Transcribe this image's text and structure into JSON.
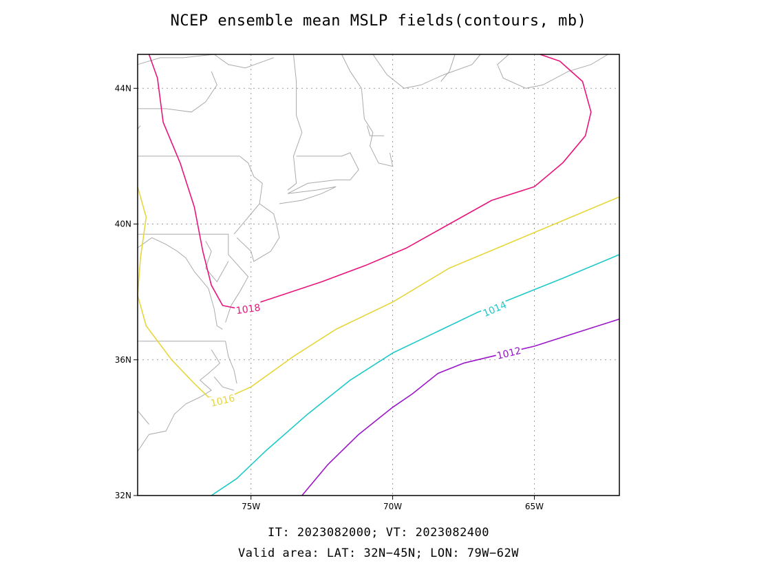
{
  "title": "NCEP ensemble mean MSLP fields(contours, mb)",
  "footer": {
    "times": "IT: 2023082000; VT: 2023082400",
    "area": "Valid area: LAT: 32N−45N; LON: 79W−62W"
  },
  "map": {
    "lon_range": [
      -79,
      -62
    ],
    "lat_range": [
      32,
      45
    ],
    "grid": "dotted",
    "xticks": [
      {
        "lon": -75,
        "label": "75W"
      },
      {
        "lon": -70,
        "label": "70W"
      },
      {
        "lon": -65,
        "label": "65W"
      }
    ],
    "yticks": [
      {
        "lat": 32,
        "label": "32N"
      },
      {
        "lat": 36,
        "label": "36N"
      },
      {
        "lat": 40,
        "label": "40N"
      },
      {
        "lat": 44,
        "label": "44N"
      }
    ],
    "coastline_color": "#aaaaaa"
  },
  "contours": [
    {
      "value": "1018",
      "color": "#e8147c",
      "label_at": [
        -75.1,
        37.5
      ],
      "points": [
        [
          -78.6,
          45
        ],
        [
          -78.3,
          44.3
        ],
        [
          -78.1,
          43
        ],
        [
          -77.5,
          41.8
        ],
        [
          -77.0,
          40.5
        ],
        [
          -76.7,
          39.2
        ],
        [
          -76.4,
          38.2
        ],
        [
          -76.0,
          37.6
        ],
        [
          -75.4,
          37.5
        ],
        [
          -74.3,
          37.8
        ],
        [
          -72.5,
          38.3
        ],
        [
          -70.9,
          38.8
        ],
        [
          -69.5,
          39.3
        ],
        [
          -68.0,
          40.0
        ],
        [
          -66.5,
          40.7
        ],
        [
          -65.0,
          41.1
        ],
        [
          -64.0,
          41.8
        ],
        [
          -63.2,
          42.6
        ],
        [
          -63.0,
          43.3
        ],
        [
          -63.3,
          44.2
        ],
        [
          -64.1,
          44.8
        ],
        [
          -64.8,
          45
        ]
      ]
    },
    {
      "value": "1016",
      "color": "#e6d63a",
      "label_at": [
        -76.0,
        34.8
      ],
      "points": [
        [
          -79,
          41.1
        ],
        [
          -78.7,
          40.2
        ],
        [
          -78.9,
          39.0
        ],
        [
          -79.0,
          37.9
        ],
        [
          -78.7,
          37.0
        ],
        [
          -77.8,
          36.0
        ],
        [
          -77.0,
          35.3
        ],
        [
          -76.5,
          34.9
        ],
        [
          -75.8,
          34.9
        ],
        [
          -75.0,
          35.2
        ],
        [
          -73.5,
          36.1
        ],
        [
          -72.0,
          36.9
        ],
        [
          -70.0,
          37.7
        ],
        [
          -68.0,
          38.7
        ],
        [
          -66.0,
          39.4
        ],
        [
          -64.0,
          40.1
        ],
        [
          -62,
          40.8
        ]
      ]
    },
    {
      "value": "1014",
      "color": "#1dc8c8",
      "label_at": [
        -66.4,
        37.5
      ],
      "points": [
        [
          -76.4,
          32
        ],
        [
          -75.5,
          32.5
        ],
        [
          -74.5,
          33.3
        ],
        [
          -73.0,
          34.4
        ],
        [
          -71.5,
          35.4
        ],
        [
          -70.0,
          36.2
        ],
        [
          -68.5,
          36.8
        ],
        [
          -67.0,
          37.4
        ],
        [
          -65.5,
          37.9
        ],
        [
          -64.0,
          38.4
        ],
        [
          -62,
          39.1
        ]
      ]
    },
    {
      "value": "1012",
      "color": "#9a14c8",
      "label_at": [
        -65.9,
        36.2
      ],
      "points": [
        [
          -73.2,
          32
        ],
        [
          -72.3,
          32.9
        ],
        [
          -71.2,
          33.8
        ],
        [
          -70.0,
          34.6
        ],
        [
          -69.3,
          35.0
        ],
        [
          -68.4,
          35.6
        ],
        [
          -67.5,
          35.9
        ],
        [
          -66.5,
          36.1
        ],
        [
          -65.0,
          36.4
        ],
        [
          -63.5,
          36.8
        ],
        [
          -62,
          37.2
        ]
      ]
    }
  ],
  "coast_lines": [
    [
      [
        -79,
        44.7
      ],
      [
        -78.2,
        44.9
      ],
      [
        -77.4,
        44.9
      ],
      [
        -76.3,
        45
      ],
      [
        -75.8,
        44.7
      ],
      [
        -75.2,
        44.6
      ],
      [
        -74.2,
        44.9
      ]
    ],
    [
      [
        -79,
        43.4
      ],
      [
        -78,
        43.4
      ],
      [
        -77.1,
        43.3
      ],
      [
        -76.6,
        43.6
      ],
      [
        -76.2,
        44.1
      ],
      [
        -76.4,
        44.5
      ]
    ],
    [
      [
        -79,
        42.8
      ],
      [
        -78.9,
        42.9
      ]
    ],
    [
      [
        -79,
        42
      ],
      [
        -75.4,
        42
      ]
    ],
    [
      [
        -75.4,
        42
      ],
      [
        -75.1,
        41.8
      ],
      [
        -74.9,
        41.4
      ],
      [
        -74.6,
        41.2
      ],
      [
        -74.7,
        40.6
      ],
      [
        -75.2,
        40.1
      ],
      [
        -75.5,
        39.8
      ],
      [
        -75.6,
        39.7
      ]
    ],
    [
      [
        -74.7,
        40.6
      ],
      [
        -74.2,
        40.3
      ],
      [
        -74.1,
        40.0
      ],
      [
        -74.0,
        39.6
      ],
      [
        -74.3,
        39.2
      ],
      [
        -74.9,
        38.9
      ],
      [
        -75.0,
        39.2
      ],
      [
        -75.5,
        39.6
      ]
    ],
    [
      [
        -79,
        39.7
      ],
      [
        -75.8,
        39.7
      ],
      [
        -75.8,
        39.1
      ],
      [
        -75.1,
        38.45
      ],
      [
        -75.4,
        38.0
      ],
      [
        -75.7,
        37.6
      ],
      [
        -75.9,
        37.1
      ]
    ],
    [
      [
        -79,
        39.3
      ],
      [
        -78.5,
        39.6
      ],
      [
        -78.0,
        39.4
      ],
      [
        -77.6,
        39.2
      ],
      [
        -77.3,
        39.0
      ],
      [
        -77.0,
        38.6
      ],
      [
        -76.5,
        38.1
      ],
      [
        -76.3,
        37.5
      ],
      [
        -76.2,
        37.0
      ],
      [
        -76.0,
        36.9
      ]
    ],
    [
      [
        -76.6,
        39.5
      ],
      [
        -76.4,
        39.2
      ],
      [
        -76.6,
        38.7
      ],
      [
        -76.2,
        38.3
      ],
      [
        -76.0,
        38.6
      ],
      [
        -75.8,
        38.9
      ]
    ],
    [
      [
        -79,
        36.55
      ],
      [
        -75.9,
        36.55
      ]
    ],
    [
      [
        -75.9,
        36.55
      ],
      [
        -75.8,
        36.1
      ],
      [
        -75.6,
        35.7
      ],
      [
        -75.5,
        35.3
      ]
    ],
    [
      [
        -76.3,
        35.5
      ],
      [
        -76.0,
        35.2
      ],
      [
        -75.6,
        35.1
      ]
    ],
    [
      [
        -76.4,
        36.3
      ],
      [
        -76.1,
        35.9
      ],
      [
        -76.5,
        35.6
      ],
      [
        -76.8,
        35.4
      ],
      [
        -76.4,
        35.1
      ],
      [
        -76.8,
        34.9
      ],
      [
        -77.3,
        34.7
      ],
      [
        -77.7,
        34.4
      ],
      [
        -78.0,
        33.9
      ],
      [
        -78.6,
        33.8
      ],
      [
        -79,
        33.3
      ]
    ],
    [
      [
        -79,
        34.5
      ],
      [
        -78.6,
        34.1
      ]
    ],
    [
      [
        -73.5,
        45
      ],
      [
        -73.4,
        44.2
      ],
      [
        -73.4,
        43.2
      ],
      [
        -73.2,
        42.7
      ],
      [
        -73.5,
        42
      ],
      [
        -73.4,
        41.2
      ],
      [
        -73.7,
        41.0
      ]
    ],
    [
      [
        -71.8,
        45
      ],
      [
        -71.5,
        44.5
      ],
      [
        -71.1,
        44.0
      ],
      [
        -71.0,
        43.1
      ],
      [
        -70.7,
        42.7
      ],
      [
        -70.8,
        42.3
      ],
      [
        -70.5,
        41.8
      ],
      [
        -70.0,
        41.7
      ],
      [
        -70.1,
        42.1
      ]
    ],
    [
      [
        -73.4,
        42
      ],
      [
        -71.8,
        42
      ],
      [
        -71.5,
        42.1
      ],
      [
        -71.2,
        41.6
      ],
      [
        -71.5,
        41.3
      ],
      [
        -72.0,
        41.3
      ],
      [
        -73.0,
        41.2
      ],
      [
        -73.7,
        40.9
      ]
    ],
    [
      [
        -73.7,
        40.9
      ],
      [
        -72.7,
        41.0
      ],
      [
        -72.0,
        41.1
      ],
      [
        -72.5,
        40.9
      ],
      [
        -73.2,
        40.7
      ],
      [
        -74.0,
        40.6
      ]
    ],
    [
      [
        -70.7,
        45
      ],
      [
        -70.2,
        44.4
      ],
      [
        -69.6,
        44.0
      ],
      [
        -69.0,
        44.1
      ],
      [
        -68.2,
        44.4
      ],
      [
        -67.2,
        44.7
      ],
      [
        -66.9,
        45
      ]
    ],
    [
      [
        -65.9,
        45
      ],
      [
        -66.3,
        44.7
      ],
      [
        -66.1,
        44.3
      ],
      [
        -65.3,
        44.0
      ],
      [
        -64.7,
        44.1
      ],
      [
        -63.8,
        44.5
      ],
      [
        -63.0,
        44.7
      ],
      [
        -62.4,
        45
      ]
    ],
    [
      [
        -70.9,
        42.9
      ],
      [
        -70.8,
        42.6
      ],
      [
        -70.3,
        42.6
      ]
    ],
    [
      [
        -67.8,
        45
      ],
      [
        -68.0,
        44.5
      ],
      [
        -68.3,
        44.2
      ]
    ]
  ]
}
